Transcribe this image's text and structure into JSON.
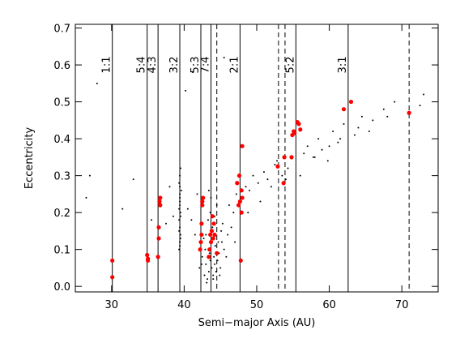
{
  "chart_data": {
    "type": "scatter",
    "xlabel": "Semi−major Axis (AU)",
    "ylabel": "Eccentricity",
    "xlim": [
      25,
      75
    ],
    "xticks": [
      30,
      40,
      50,
      60,
      70
    ],
    "ylim": [
      -0.015,
      0.71
    ],
    "yticks": [
      {
        "value": 0,
        "label": "0.0"
      },
      0.1,
      0.2,
      0.3,
      0.4,
      0.5,
      0.6,
      0.7
    ],
    "resonances": [
      {
        "x": 30.1,
        "label": "1:1"
      },
      {
        "x": 34.9,
        "label": "5:4"
      },
      {
        "x": 36.4,
        "label": "4:3"
      },
      {
        "x": 39.4,
        "label": "3:2"
      },
      {
        "x": 42.3,
        "label": "5:3"
      },
      {
        "x": 43.7,
        "label": "7:4"
      },
      {
        "x": 47.7,
        "label": "2:1"
      },
      {
        "x": 55.4,
        "label": "5:2"
      },
      {
        "x": 62.6,
        "label": "3:1"
      }
    ],
    "dashed_lines": [
      44.5,
      53.0,
      53.9,
      71.0
    ],
    "series": [
      {
        "color": "#000000",
        "x": [
          39.3,
          39.4,
          39.5,
          39.4,
          39.3,
          39.5,
          39.4,
          39.4,
          39.6,
          39.3,
          39.4,
          39.5,
          39.4,
          39.3,
          39.5,
          39.4,
          39.4,
          39.5,
          39.3,
          39.4,
          42.1,
          42.5,
          42.8,
          43.0,
          43.2,
          43.4,
          43.5,
          43.6,
          43.8,
          44.0,
          44.1,
          44.2,
          44.3,
          44.4,
          44.6,
          44.8,
          45.0,
          45.2,
          45.5,
          45.8,
          43.0,
          43.3,
          43.9,
          44.7,
          45.1,
          43.1,
          42.9,
          44.0,
          43.6,
          44.5,
          42.7,
          43.7,
          44.2,
          45.3,
          46.0,
          46.5,
          47.0,
          43.4,
          44.9,
          42.4,
          41.0,
          41.5,
          40.5,
          38.5,
          37.5,
          38.0,
          41.8,
          46.2,
          47.2,
          48.5,
          49.0,
          49.5,
          50.2,
          51.0,
          51.5,
          52.0,
          52.5,
          53.5,
          54.3,
          56.5,
          57.0,
          57.8,
          58.5,
          59.0,
          59.8,
          60.5,
          61.2,
          62.0,
          63.5,
          64.5,
          66.0,
          67.5,
          69.0,
          72.5,
          27.0,
          28.0,
          26.5,
          31.5,
          33.0,
          35.5,
          48.8,
          50.5,
          52.8,
          54.0,
          56.0,
          58.0,
          60.0,
          61.5,
          64.0,
          65.5,
          68.0,
          73.0,
          45.5,
          46.8,
          41.2,
          40.2
        ],
        "y": [
          0.1,
          0.12,
          0.14,
          0.16,
          0.18,
          0.2,
          0.22,
          0.24,
          0.26,
          0.28,
          0.3,
          0.32,
          0.11,
          0.15,
          0.19,
          0.23,
          0.27,
          0.13,
          0.21,
          0.25,
          0.05,
          0.08,
          0.03,
          0.06,
          0.02,
          0.04,
          0.09,
          0.07,
          0.05,
          0.03,
          0.08,
          0.06,
          0.11,
          0.04,
          0.07,
          0.09,
          0.05,
          0.12,
          0.1,
          0.08,
          0.14,
          0.18,
          0.16,
          0.12,
          0.15,
          0.01,
          0.1,
          0.02,
          0.2,
          0.22,
          0.13,
          0.24,
          0.19,
          0.17,
          0.14,
          0.16,
          0.12,
          0.26,
          0.03,
          0.06,
          0.18,
          0.14,
          0.21,
          0.19,
          0.17,
          0.27,
          0.25,
          0.22,
          0.25,
          0.27,
          0.26,
          0.3,
          0.28,
          0.31,
          0.29,
          0.27,
          0.33,
          0.3,
          0.32,
          0.36,
          0.38,
          0.35,
          0.4,
          0.37,
          0.34,
          0.42,
          0.39,
          0.44,
          0.41,
          0.46,
          0.45,
          0.48,
          0.5,
          0.49,
          0.3,
          0.55,
          0.24,
          0.21,
          0.29,
          0.18,
          0.2,
          0.23,
          0.34,
          0.29,
          0.3,
          0.35,
          0.38,
          0.4,
          0.43,
          0.42,
          0.46,
          0.52,
          0.62,
          0.2,
          0.58,
          0.53
        ]
      },
      {
        "color": "#ff0000",
        "x": [
          30.1,
          30.1,
          34.9,
          35.0,
          35.0,
          36.4,
          36.5,
          36.5,
          36.6,
          36.7,
          36.7,
          42.2,
          42.3,
          42.4,
          42.4,
          42.5,
          42.6,
          42.5,
          43.4,
          43.5,
          43.7,
          43.8,
          43.6,
          43.9,
          44.1,
          44.0,
          44.2,
          44.5,
          47.3,
          47.6,
          47.5,
          47.7,
          47.9,
          48.0,
          48.0,
          47.9,
          47.8,
          52.9,
          53.7,
          53.8,
          54.8,
          54.9,
          55.1,
          55.2,
          55.6,
          55.8,
          56.0,
          62.0,
          63.0,
          71.0
        ],
        "y": [
          0.07,
          0.025,
          0.085,
          0.075,
          0.07,
          0.08,
          0.13,
          0.16,
          0.23,
          0.24,
          0.22,
          0.1,
          0.12,
          0.14,
          0.17,
          0.22,
          0.24,
          0.23,
          0.08,
          0.1,
          0.12,
          0.15,
          0.14,
          0.19,
          0.17,
          0.13,
          0.14,
          0.09,
          0.28,
          0.3,
          0.22,
          0.23,
          0.26,
          0.24,
          0.38,
          0.2,
          0.07,
          0.325,
          0.28,
          0.35,
          0.35,
          0.41,
          0.42,
          0.415,
          0.445,
          0.44,
          0.425,
          0.48,
          0.5,
          0.47
        ]
      }
    ]
  }
}
